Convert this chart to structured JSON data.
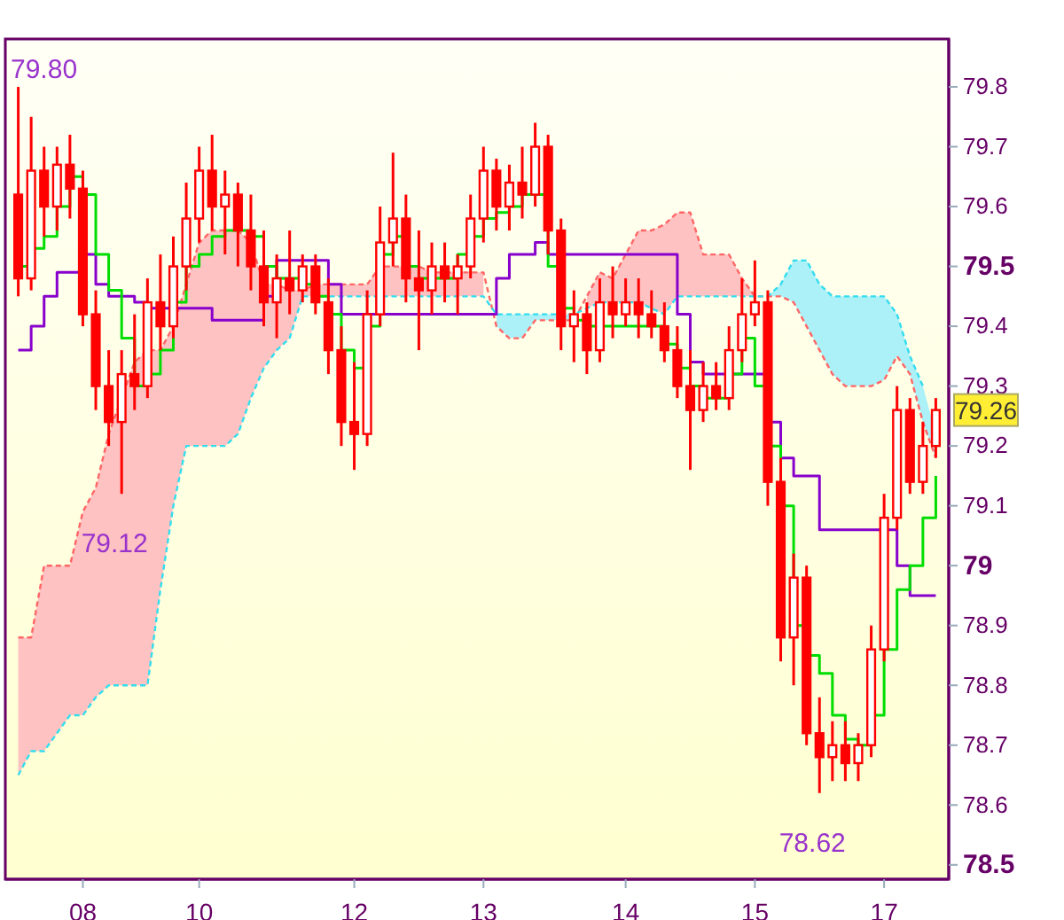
{
  "chart_data": {
    "type": "candlestick",
    "color": "#ff0000",
    "categories": [
      null,
      null,
      null,
      null,
      null,
      "08",
      null,
      null,
      null,
      null,
      null,
      null,
      null,
      null,
      "10",
      null,
      null,
      null,
      null,
      null,
      null,
      null,
      null,
      null,
      null,
      null,
      "12",
      null,
      null,
      null,
      null,
      null,
      null,
      null,
      null,
      null,
      "13",
      null,
      null,
      null,
      null,
      null,
      null,
      null,
      null,
      null,
      null,
      "14",
      null,
      null,
      null,
      null,
      null,
      null,
      null,
      null,
      null,
      "15",
      null,
      null,
      null,
      null,
      null,
      null,
      null,
      null,
      null,
      "17",
      null,
      null,
      null,
      null
    ],
    "ohlc": [
      [
        79.62,
        79.8,
        79.45,
        79.48
      ],
      [
        79.48,
        79.75,
        79.46,
        79.66
      ],
      [
        79.66,
        79.7,
        79.55,
        79.6
      ],
      [
        79.6,
        79.7,
        79.56,
        79.67
      ],
      [
        79.67,
        79.72,
        79.58,
        79.63
      ],
      [
        79.63,
        79.66,
        79.4,
        79.42
      ],
      [
        79.42,
        79.46,
        79.26,
        79.3
      ],
      [
        79.3,
        79.36,
        79.2,
        79.24
      ],
      [
        79.24,
        79.36,
        79.12,
        79.32
      ],
      [
        79.32,
        79.42,
        79.26,
        79.3
      ],
      [
        79.3,
        79.48,
        79.28,
        79.44
      ],
      [
        79.44,
        79.52,
        79.36,
        79.4
      ],
      [
        79.4,
        79.55,
        79.38,
        79.5
      ],
      [
        79.5,
        79.64,
        79.46,
        79.58
      ],
      [
        79.58,
        79.7,
        79.54,
        79.66
      ],
      [
        79.66,
        79.72,
        79.56,
        79.6
      ],
      [
        79.6,
        79.66,
        79.52,
        79.62
      ],
      [
        79.62,
        79.64,
        79.5,
        79.56
      ],
      [
        79.56,
        79.62,
        79.46,
        79.5
      ],
      [
        79.5,
        79.56,
        79.4,
        79.44
      ],
      [
        79.44,
        79.52,
        79.38,
        79.48
      ],
      [
        79.48,
        79.56,
        79.42,
        79.46
      ],
      [
        79.46,
        79.52,
        79.44,
        79.5
      ],
      [
        79.5,
        79.52,
        79.42,
        79.44
      ],
      [
        79.44,
        79.48,
        79.32,
        79.36
      ],
      [
        79.36,
        79.4,
        79.2,
        79.24
      ],
      [
        79.24,
        79.34,
        79.16,
        79.22
      ],
      [
        79.22,
        79.46,
        79.2,
        79.42
      ],
      [
        79.42,
        79.6,
        79.4,
        79.54
      ],
      [
        79.54,
        79.69,
        79.5,
        79.58
      ],
      [
        79.58,
        79.62,
        79.44,
        79.48
      ],
      [
        79.48,
        79.56,
        79.36,
        79.46
      ],
      [
        79.46,
        79.54,
        79.42,
        79.5
      ],
      [
        79.5,
        79.54,
        79.44,
        79.48
      ],
      [
        79.48,
        79.52,
        79.42,
        79.5
      ],
      [
        79.5,
        79.62,
        79.48,
        79.58
      ],
      [
        79.58,
        79.7,
        79.54,
        79.66
      ],
      [
        79.66,
        79.68,
        79.56,
        79.6
      ],
      [
        79.6,
        79.67,
        79.56,
        79.64
      ],
      [
        79.64,
        79.7,
        79.58,
        79.62
      ],
      [
        79.62,
        79.74,
        79.6,
        79.7
      ],
      [
        79.7,
        79.72,
        79.52,
        79.56
      ],
      [
        79.56,
        79.58,
        79.36,
        79.4
      ],
      [
        79.4,
        79.46,
        79.34,
        79.42
      ],
      [
        79.42,
        79.44,
        79.32,
        79.36
      ],
      [
        79.36,
        79.48,
        79.34,
        79.44
      ],
      [
        79.44,
        79.5,
        79.38,
        79.42
      ],
      [
        79.42,
        79.48,
        79.4,
        79.44
      ],
      [
        79.44,
        79.48,
        79.38,
        79.42
      ],
      [
        79.42,
        79.46,
        79.38,
        79.4
      ],
      [
        79.4,
        79.44,
        79.34,
        79.36
      ],
      [
        79.36,
        79.4,
        79.28,
        79.3
      ],
      [
        79.3,
        79.36,
        79.16,
        79.26
      ],
      [
        79.26,
        79.34,
        79.24,
        79.3
      ],
      [
        79.3,
        79.34,
        79.26,
        79.28
      ],
      [
        79.28,
        79.4,
        79.26,
        79.36
      ],
      [
        79.36,
        79.48,
        79.34,
        79.42
      ],
      [
        79.42,
        79.51,
        79.4,
        79.44
      ],
      [
        79.44,
        79.46,
        79.1,
        79.14
      ],
      [
        79.14,
        79.18,
        78.84,
        78.88
      ],
      [
        78.88,
        79.02,
        78.8,
        78.98
      ],
      [
        78.98,
        79.0,
        78.7,
        78.72
      ],
      [
        78.72,
        78.78,
        78.62,
        78.68
      ],
      [
        78.68,
        78.74,
        78.64,
        78.7
      ],
      [
        78.7,
        78.74,
        78.64,
        78.67
      ],
      [
        78.67,
        78.72,
        78.64,
        78.7
      ],
      [
        78.7,
        78.9,
        78.68,
        78.86
      ],
      [
        78.86,
        79.12,
        78.84,
        79.08
      ],
      [
        79.08,
        79.3,
        79.06,
        79.26
      ],
      [
        79.26,
        79.28,
        79.12,
        79.14
      ],
      [
        79.14,
        79.24,
        79.12,
        79.2
      ],
      [
        79.2,
        79.28,
        79.18,
        79.26
      ]
    ],
    "series": [
      {
        "type": "line",
        "line_style": "dashed",
        "color": "#ff6666",
        "upper": [
          78.88,
          78.88,
          79.0,
          79.0,
          79.0,
          79.09,
          79.13,
          79.22,
          79.28,
          79.34,
          79.36,
          79.36,
          79.4,
          79.47,
          79.54,
          79.56,
          79.56,
          79.56,
          79.54,
          79.47,
          79.47,
          79.46,
          79.46,
          79.47,
          79.47,
          79.47,
          79.47,
          79.47,
          79.5,
          79.5,
          79.5,
          79.5,
          79.49,
          79.49,
          79.49,
          79.49,
          79.49,
          null,
          null,
          null,
          null,
          null,
          null,
          null,
          79.45,
          79.49,
          79.48,
          79.52,
          79.56,
          79.56,
          79.57,
          79.59,
          79.59,
          79.52,
          79.52,
          79.52,
          79.48,
          79.45,
          79.45,
          null,
          null,
          null,
          null,
          null,
          null,
          null,
          null,
          null,
          null,
          null,
          null,
          null
        ],
        "lower": [
          78.65,
          78.69,
          78.69,
          78.72,
          78.75,
          78.75,
          78.78,
          78.8,
          78.8,
          78.8,
          78.8,
          78.96,
          79.1,
          79.2,
          79.2,
          79.2,
          79.2,
          79.22,
          79.28,
          79.33,
          79.36,
          79.38,
          79.45,
          79.45,
          79.45,
          79.45,
          79.45,
          79.45,
          79.45,
          79.45,
          79.45,
          79.45,
          79.45,
          79.45,
          79.45,
          79.45,
          79.45,
          null,
          null,
          null,
          null,
          null,
          null,
          null,
          79.43,
          79.44,
          79.44,
          79.44,
          79.44,
          79.43,
          79.42,
          79.45,
          79.45,
          79.45,
          79.45,
          79.45,
          79.45,
          79.45,
          79.45,
          null,
          null,
          null,
          null,
          null,
          null,
          null,
          null,
          null,
          null,
          null,
          null,
          null
        ],
        "values": [
          78.88,
          78.88,
          79.0,
          79.0,
          79.0,
          79.09,
          79.13,
          79.22,
          79.28,
          79.34,
          79.36,
          79.36,
          79.4,
          79.47,
          79.54,
          79.56,
          79.56,
          79.56,
          79.54,
          79.47,
          79.47,
          79.46,
          79.46,
          79.47,
          79.47,
          79.47,
          79.47,
          79.47,
          79.5,
          79.5,
          79.5,
          79.5,
          79.49,
          79.49,
          79.49,
          79.49,
          79.49,
          79.4,
          79.38,
          79.38,
          79.41,
          79.41,
          79.41,
          79.41,
          79.45,
          79.49,
          79.48,
          79.52,
          79.56,
          79.56,
          79.57,
          79.59,
          79.59,
          79.52,
          79.52,
          79.52,
          79.48,
          79.45,
          79.45,
          79.45,
          79.44,
          79.4,
          79.36,
          79.32,
          79.3,
          79.3,
          79.3,
          79.31,
          79.35,
          79.32,
          79.24,
          79.18
        ]
      },
      {
        "type": "line",
        "line_style": "dashed",
        "color": "#33ddee",
        "upper": [
          null,
          null,
          null,
          null,
          null,
          null,
          null,
          null,
          null,
          null,
          null,
          null,
          null,
          null,
          null,
          null,
          null,
          null,
          null,
          null,
          null,
          null,
          null,
          null,
          null,
          null,
          null,
          null,
          null,
          null,
          null,
          null,
          null,
          null,
          null,
          null,
          null,
          79.42,
          79.42,
          79.42,
          79.42,
          79.42,
          79.42,
          79.42,
          null,
          null,
          null,
          null,
          null,
          null,
          null,
          null,
          null,
          null,
          null,
          null,
          null,
          null,
          79.45,
          79.47,
          79.51,
          79.51,
          79.47,
          79.45,
          79.45,
          79.45,
          79.45,
          79.45,
          79.42,
          79.35,
          79.3,
          79.22
        ],
        "lower": [
          null,
          null,
          null,
          null,
          null,
          null,
          null,
          null,
          null,
          null,
          null,
          null,
          null,
          null,
          null,
          null,
          null,
          null,
          null,
          null,
          null,
          null,
          null,
          null,
          null,
          null,
          null,
          null,
          null,
          null,
          null,
          null,
          null,
          null,
          null,
          null,
          null,
          79.4,
          79.38,
          79.38,
          79.41,
          79.41,
          79.41,
          79.41,
          null,
          null,
          null,
          null,
          null,
          null,
          null,
          null,
          null,
          null,
          null,
          null,
          null,
          null,
          79.45,
          79.45,
          79.44,
          79.4,
          79.36,
          79.32,
          79.3,
          79.3,
          79.3,
          79.31,
          79.35,
          79.32,
          79.24,
          79.18
        ],
        "values": [
          78.65,
          78.69,
          78.69,
          78.72,
          78.75,
          78.75,
          78.78,
          78.8,
          78.8,
          78.8,
          78.8,
          78.96,
          79.1,
          79.2,
          79.2,
          79.2,
          79.2,
          79.22,
          79.28,
          79.33,
          79.36,
          79.38,
          79.45,
          79.45,
          79.45,
          79.45,
          79.45,
          79.45,
          79.45,
          79.45,
          79.45,
          79.45,
          79.45,
          79.45,
          79.45,
          79.45,
          79.45,
          79.42,
          79.42,
          79.42,
          79.42,
          79.42,
          79.42,
          79.42,
          79.43,
          79.44,
          79.44,
          79.44,
          79.44,
          79.43,
          79.42,
          79.45,
          79.45,
          79.45,
          79.45,
          79.45,
          79.45,
          79.45,
          79.45,
          79.47,
          79.51,
          79.51,
          79.47,
          79.45,
          79.45,
          79.45,
          79.45,
          79.45,
          79.42,
          79.35,
          79.3,
          null
        ]
      },
      {
        "type": "step",
        "color": "#8800cc",
        "values": [
          79.36,
          79.4,
          79.45,
          79.49,
          79.49,
          79.52,
          79.47,
          79.45,
          79.45,
          79.44,
          79.43,
          79.43,
          79.43,
          79.43,
          79.43,
          79.41,
          79.41,
          79.41,
          79.41,
          79.45,
          79.51,
          79.51,
          79.51,
          79.51,
          79.47,
          79.42,
          79.42,
          79.42,
          79.42,
          79.42,
          79.42,
          79.42,
          79.42,
          79.42,
          79.42,
          79.42,
          79.42,
          79.48,
          79.52,
          79.52,
          79.54,
          79.52,
          79.52,
          79.52,
          79.52,
          79.52,
          79.52,
          79.52,
          79.52,
          79.52,
          79.52,
          79.42,
          79.34,
          79.32,
          79.32,
          79.32,
          79.32,
          79.32,
          79.24,
          79.18,
          79.15,
          79.15,
          79.06,
          79.06,
          79.06,
          79.06,
          79.06,
          79.06,
          79.0,
          78.95,
          78.95,
          78.95
        ]
      },
      {
        "type": "step",
        "color": "#00dd00",
        "values": [
          79.5,
          79.53,
          79.55,
          79.6,
          79.65,
          79.62,
          79.52,
          79.46,
          79.38,
          79.3,
          79.32,
          79.36,
          79.44,
          79.5,
          79.52,
          79.55,
          79.56,
          79.56,
          79.55,
          79.5,
          79.48,
          79.48,
          79.47,
          79.45,
          79.42,
          79.36,
          79.33,
          79.4,
          79.52,
          79.55,
          79.5,
          79.48,
          79.48,
          79.48,
          79.52,
          79.55,
          79.58,
          79.59,
          79.6,
          79.62,
          79.62,
          79.5,
          79.43,
          79.41,
          79.4,
          79.4,
          79.4,
          79.4,
          79.4,
          79.4,
          79.37,
          79.33,
          79.3,
          79.28,
          79.28,
          79.32,
          79.38,
          79.3,
          79.2,
          79.1,
          78.9,
          78.85,
          78.82,
          78.75,
          78.71,
          78.7,
          78.75,
          78.86,
          78.96,
          79.0,
          79.08,
          79.15
        ]
      }
    ],
    "ylim": [
      78.476,
      79.88
    ],
    "yticks": [
      79.8,
      79.7,
      79.6,
      79.5,
      79.4,
      79.3,
      79.2,
      79.1,
      79,
      78.9,
      78.8,
      78.7,
      78.6,
      78.5
    ],
    "annotations": [
      "79.80",
      {
        "text": "79.12",
        "y": 79.12
      },
      {
        "text": "78.62",
        "y": 78.62
      },
      {
        "text": "79.26",
        "y": 79.26
      }
    ]
  }
}
